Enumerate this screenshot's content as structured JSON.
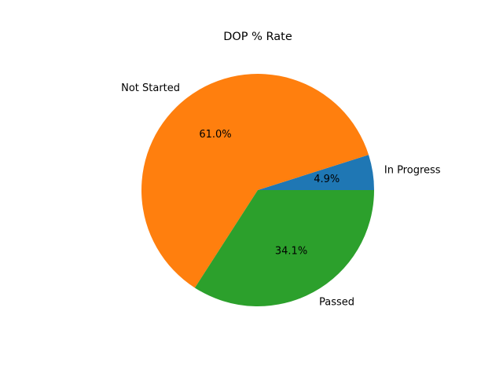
{
  "chart_data": {
    "type": "pie",
    "title": "DOP % Rate",
    "slices": [
      {
        "label": "In Progress",
        "value": 4.9,
        "pct_label": "4.9%",
        "color": "#1f77b4"
      },
      {
        "label": "Not Started",
        "value": 61.0,
        "pct_label": "61.0%",
        "color": "#ff7f0e"
      },
      {
        "label": "Passed",
        "value": 34.1,
        "pct_label": "34.1%",
        "color": "#2ca02c"
      }
    ],
    "start_angle_deg": 0,
    "direction": "counterclockwise",
    "legend": "none"
  }
}
